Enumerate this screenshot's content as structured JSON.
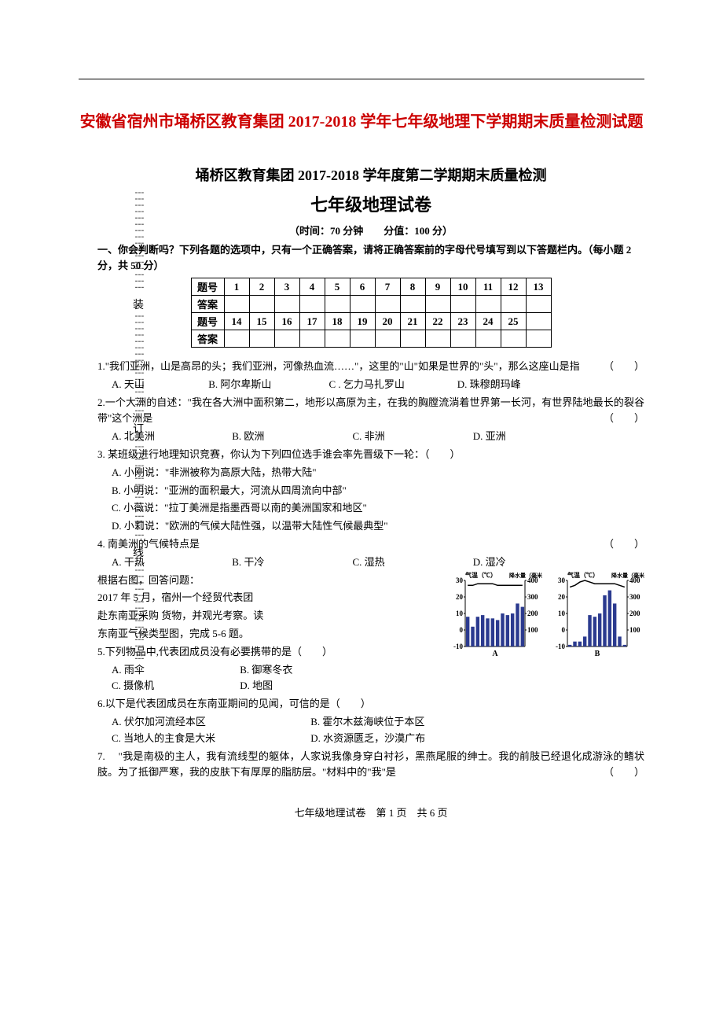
{
  "colors": {
    "title": "#cc0000",
    "text": "#000000",
    "bg": "#ffffff"
  },
  "header": {
    "main_title": "安徽省宿州市埇桥区教育集团 2017-2018 学年七年级地理下学期期末质量检测试题"
  },
  "binding": {
    "char1": "装",
    "char2": "订",
    "char3": "线"
  },
  "paper": {
    "sub_title": "埇桥区教育集团 2017-2018 学年度第二学期期末质量检测",
    "title": "七年级地理试卷",
    "meta": "（时间：70 分钟　　分值：100 分）",
    "section1_intro": "一、你会判断吗？下列各题的选项中，只有一个正确答案，请将正确答案前的字母代号填写到以下答题栏内。（每小题 2 分，共 50 分）"
  },
  "answer_table": {
    "row1_label": "题号",
    "row1": [
      "1",
      "2",
      "3",
      "4",
      "5",
      "6",
      "7",
      "8",
      "9",
      "10",
      "11",
      "12",
      "13"
    ],
    "row2_label": "答案",
    "row3_label": "题号",
    "row3": [
      "14",
      "15",
      "16",
      "17",
      "18",
      "19",
      "20",
      "21",
      "22",
      "23",
      "24",
      "25",
      ""
    ],
    "row4_label": "答案"
  },
  "q1": {
    "text": "1.\"我们亚洲，山是高昂的头；我们亚洲，河像热血流……\"，这里的\"山\"如果是世界的\"头\"，那么这座山是指",
    "paren": "（　　）",
    "a": "A. 天山",
    "b": "B. 阿尔卑斯山",
    "c": "C . 乞力马扎罗山",
    "d": "D. 珠穆朗玛峰"
  },
  "q2": {
    "text": "2.一个大洲的自述：\"我在各大洲中面积第二，地形以高原为主，在我的胸膛流淌着世界第一长河，有世界陆地最长的裂谷带\"这个洲是",
    "paren": "（　　）",
    "a": "A. 北美洲",
    "b": "B. 欧洲",
    "c": "C. 非洲",
    "d": "D. 亚洲"
  },
  "q3": {
    "text": "3. 某班级进行地理知识竞赛，你认为下列四位选手谁会率先晋级下一轮：（　　）",
    "a": "A. 小刚说：\"非洲被称为高原大陆，热带大陆\"",
    "b": "B. 小明说：\"亚洲的面积最大，河流从四周流向中部\"",
    "c": "C. 小薇说：\"拉丁美洲是指墨西哥以南的美洲国家和地区\"",
    "d": "D. 小莉说：\"欧洲的气候大陆性强，以温带大陆性气候最典型\""
  },
  "q4": {
    "text": "4. 南美洲的气候特点是",
    "paren": "（　　）",
    "a": "A. 干热",
    "b": "B. 干冷",
    "c": "C. 湿热",
    "d": "D. 湿冷"
  },
  "context56": {
    "l1": "根据右图，回答问题：",
    "l2": "2017 年 5 月，宿州一个经贸代表团",
    "l3": "赴东南亚采购 货物，并观光考察。读",
    "l4": "东南亚气候类型图，完成 5-6 题。"
  },
  "q5": {
    "text": "5.下列物品中,代表团成员没有必要携带的是（　　）",
    "a": "A. 雨伞",
    "b": "B. 御寒冬衣",
    "c": "C. 摄像机",
    "d": "D. 地图"
  },
  "q6": {
    "text": "6.以下是代表团成员在东南亚期间的见闻，可信的是（　　）",
    "a": "A. 伏尔加河流经本区",
    "b": "B. 霍尔木兹海峡位于本区",
    "c": "C. 当地人的主食是大米",
    "d": "D. 水资源匮乏，沙漠广布"
  },
  "q7": {
    "text": "7. 　\"我是南极的主人，我有流线型的躯体，人家说我像身穿白衬衫，黑燕尾服的绅士。我的前肢已经退化成游泳的鳍状肢。为了抵御严寒，我的皮肤下有厚厚的脂肪层。\"材料中的\"我\"是",
    "paren": "（　　）"
  },
  "charts": {
    "title_l": "气温（℃）",
    "title_r": "降水量（毫米）",
    "labelA": "A",
    "labelB": "B",
    "y_temp": [
      "30",
      "20",
      "10",
      "0",
      "-10"
    ],
    "y_rain": [
      "400",
      "300",
      "200",
      "100"
    ],
    "A": {
      "temp_y": [
        27,
        27,
        28,
        28,
        28,
        28,
        27,
        27,
        27,
        27,
        27,
        27
      ],
      "rain_mm": [
        180,
        120,
        180,
        190,
        170,
        170,
        160,
        200,
        190,
        200,
        260,
        240
      ]
    },
    "B": {
      "temp_y": [
        26,
        27,
        29,
        30,
        29,
        28,
        28,
        28,
        28,
        28,
        27,
        26
      ],
      "rain_mm": [
        10,
        30,
        30,
        60,
        190,
        180,
        200,
        310,
        340,
        260,
        60,
        10
      ]
    },
    "style": {
      "bar_color": "#2b3a8f",
      "line_color": "#000",
      "axis_color": "#000",
      "bg": "#fff",
      "font_size": 9
    }
  },
  "footer": {
    "text": "七年级地理试卷　第 1 页　共 6 页"
  }
}
